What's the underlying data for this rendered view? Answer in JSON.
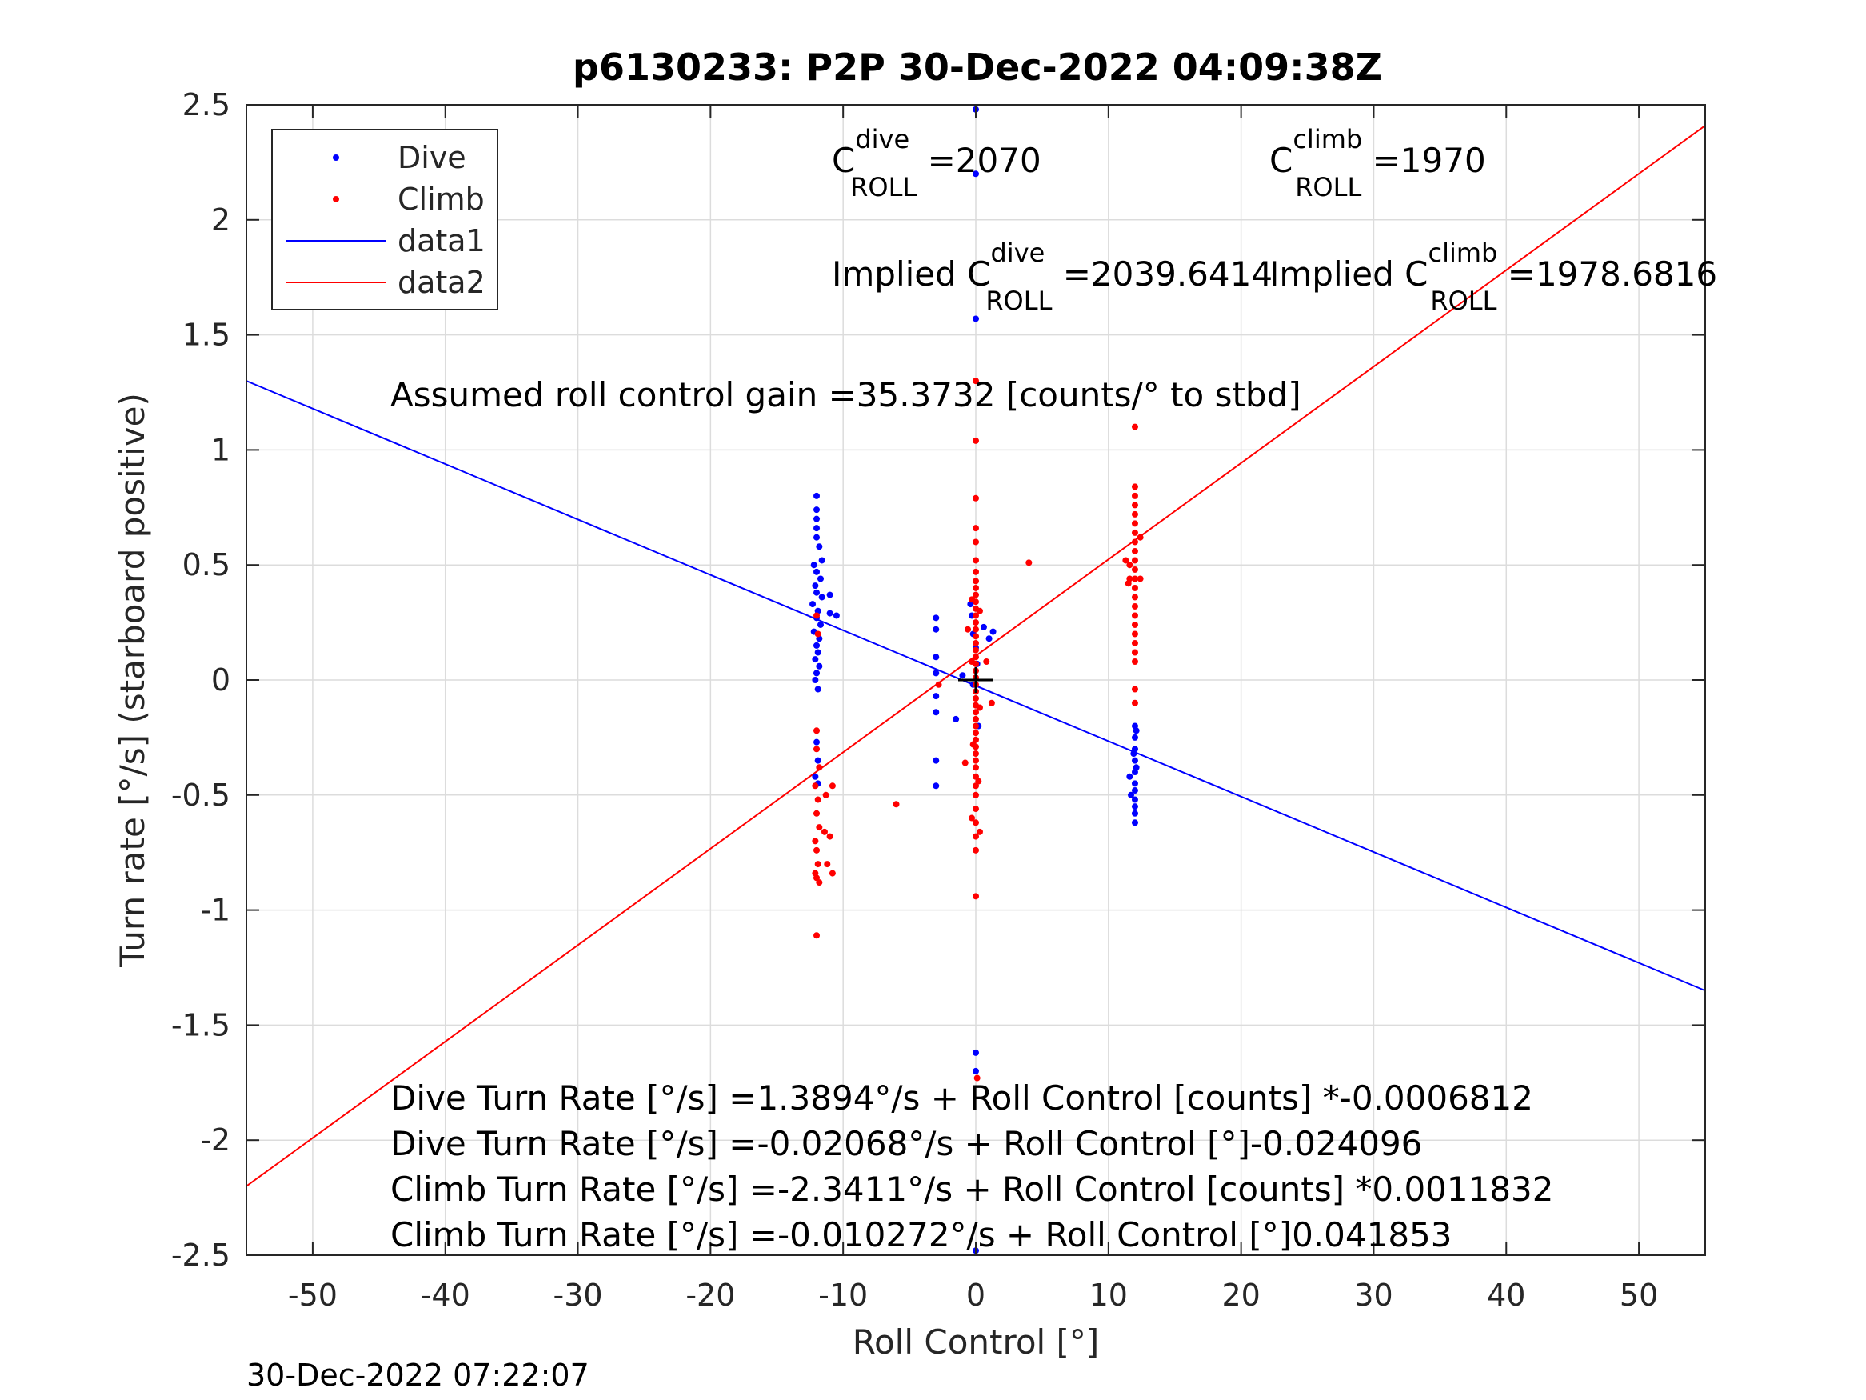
{
  "chart_data": {
    "type": "scatter",
    "title": "p6130233: P2P 30-Dec-2022 04:09:38Z",
    "xlabel": "Roll Control [°]",
    "ylabel": "Turn rate [°/s] (starboard positive)",
    "xlim": [
      -55,
      55
    ],
    "ylim": [
      -2.5,
      2.5
    ],
    "xticks": [
      -50,
      -40,
      -30,
      -20,
      -10,
      0,
      10,
      20,
      30,
      40,
      50
    ],
    "xtick_labels": [
      "-50",
      "-40",
      "-30",
      "-20",
      "-10",
      "0",
      "10",
      "20",
      "30",
      "40",
      "50"
    ],
    "yticks": [
      2.5,
      2,
      1.5,
      1,
      0.5,
      0,
      -0.5,
      -1,
      -1.5,
      -2,
      -2.5
    ],
    "ytick_labels": [
      "2.5",
      "2",
      "1.5",
      "1",
      "0.5",
      "0",
      "-0.5",
      "-1",
      "-1.5",
      "-2",
      "-2.5"
    ],
    "grid": true,
    "legend_position": "top-left",
    "legend": [
      {
        "label": "Dive",
        "type": "marker",
        "color": "#0000ff"
      },
      {
        "label": "Climb",
        "type": "marker",
        "color": "#ff0000"
      },
      {
        "label": "data1",
        "type": "line",
        "color": "#0000ff"
      },
      {
        "label": "data2",
        "type": "line",
        "color": "#ff0000"
      }
    ],
    "series": [
      {
        "name": "Dive",
        "color": "#0000ff",
        "points": [
          [
            -12,
            0.8
          ],
          [
            -12,
            0.74
          ],
          [
            -12,
            0.7
          ],
          [
            -12,
            0.66
          ],
          [
            -12,
            0.62
          ],
          [
            -11.8,
            0.58
          ],
          [
            -11.6,
            0.52
          ],
          [
            -12.2,
            0.5
          ],
          [
            -12,
            0.47
          ],
          [
            -11.7,
            0.44
          ],
          [
            -12.1,
            0.41
          ],
          [
            -12,
            0.38
          ],
          [
            -11.6,
            0.36
          ],
          [
            -12.3,
            0.33
          ],
          [
            -11.9,
            0.3
          ],
          [
            -12,
            0.27
          ],
          [
            -11.7,
            0.24
          ],
          [
            -12.2,
            0.21
          ],
          [
            -11.8,
            0.18
          ],
          [
            -12,
            0.15
          ],
          [
            -11.9,
            0.12
          ],
          [
            -12.1,
            0.09
          ],
          [
            -11.8,
            0.06
          ],
          [
            -12,
            0.03
          ],
          [
            -12.1,
            0.0
          ],
          [
            -11.9,
            -0.04
          ],
          [
            -11,
            0.37
          ],
          [
            -11,
            0.29
          ],
          [
            -10.5,
            0.28
          ],
          [
            -12,
            -0.27
          ],
          [
            -11.9,
            -0.35
          ],
          [
            -12.1,
            -0.42
          ],
          [
            -11.9,
            -0.45
          ],
          [
            -3,
            0.27
          ],
          [
            -3,
            0.22
          ],
          [
            -3,
            0.1
          ],
          [
            -3,
            0.03
          ],
          [
            -3,
            -0.07
          ],
          [
            -3,
            -0.14
          ],
          [
            -3,
            -0.35
          ],
          [
            -3,
            -0.46
          ],
          [
            -1.5,
            -0.17
          ],
          [
            -1,
            0.02
          ],
          [
            -0.4,
            0.33
          ],
          [
            -0.3,
            0.28
          ],
          [
            -0.2,
            0.2
          ],
          [
            0,
            0.14
          ],
          [
            0.1,
            0.07
          ],
          [
            -0.2,
            -0.02
          ],
          [
            0.2,
            -0.2
          ],
          [
            0,
            2.48
          ],
          [
            0,
            2.2
          ],
          [
            0,
            1.57
          ],
          [
            0,
            -1.62
          ],
          [
            0,
            -1.7
          ],
          [
            0,
            -2.48
          ],
          [
            1,
            0.18
          ],
          [
            1.3,
            0.21
          ],
          [
            0.6,
            0.23
          ],
          [
            11.6,
            -0.42
          ],
          [
            11.7,
            -0.5
          ],
          [
            12,
            -0.2
          ],
          [
            12,
            -0.25
          ],
          [
            12,
            -0.3
          ],
          [
            12,
            -0.35
          ],
          [
            12,
            -0.4
          ],
          [
            12,
            -0.45
          ],
          [
            12,
            -0.48
          ],
          [
            12,
            -0.52
          ],
          [
            12,
            -0.55
          ],
          [
            12,
            -0.58
          ],
          [
            12,
            -0.62
          ],
          [
            12.1,
            -0.22
          ],
          [
            11.9,
            -0.32
          ],
          [
            12.1,
            -0.38
          ]
        ]
      },
      {
        "name": "Climb",
        "color": "#ff0000",
        "points": [
          [
            -12,
            -0.22
          ],
          [
            -12,
            -0.3
          ],
          [
            -11.8,
            -0.38
          ],
          [
            -12.1,
            -0.46
          ],
          [
            -11.9,
            -0.52
          ],
          [
            -12,
            -0.58
          ],
          [
            -11.8,
            -0.64
          ],
          [
            -12.1,
            -0.7
          ],
          [
            -12,
            -0.74
          ],
          [
            -11.9,
            -0.8
          ],
          [
            -12,
            -0.86
          ],
          [
            -11.8,
            -0.88
          ],
          [
            -12.1,
            -0.84
          ],
          [
            -12,
            -1.11
          ],
          [
            -11.3,
            -0.5
          ],
          [
            -11.4,
            -0.66
          ],
          [
            -11,
            -0.68
          ],
          [
            -10.8,
            -0.46
          ],
          [
            -11.2,
            -0.8
          ],
          [
            -10.8,
            -0.84
          ],
          [
            -12,
            0.28
          ],
          [
            -11.9,
            0.2
          ],
          [
            -6,
            -0.54
          ],
          [
            -2.8,
            -0.02
          ],
          [
            -0.8,
            -0.36
          ],
          [
            0,
            1.3
          ],
          [
            0,
            1.04
          ],
          [
            0,
            0.79
          ],
          [
            0,
            0.66
          ],
          [
            0,
            0.6
          ],
          [
            0,
            0.52
          ],
          [
            0,
            0.47
          ],
          [
            0,
            0.43
          ],
          [
            0,
            0.4
          ],
          [
            0,
            0.37
          ],
          [
            0,
            0.34
          ],
          [
            0,
            0.31
          ],
          [
            0,
            0.28
          ],
          [
            0,
            0.25
          ],
          [
            0,
            0.22
          ],
          [
            0,
            0.19
          ],
          [
            0,
            0.16
          ],
          [
            0,
            0.13
          ],
          [
            0,
            0.1
          ],
          [
            0,
            0.07
          ],
          [
            0,
            0.04
          ],
          [
            0,
            0.01
          ],
          [
            0,
            -0.02
          ],
          [
            0,
            -0.05
          ],
          [
            0,
            -0.08
          ],
          [
            0,
            -0.11
          ],
          [
            0,
            -0.14
          ],
          [
            0,
            -0.17
          ],
          [
            0,
            -0.2
          ],
          [
            0,
            -0.23
          ],
          [
            0,
            -0.26
          ],
          [
            0,
            -0.29
          ],
          [
            0,
            -0.32
          ],
          [
            0,
            -0.35
          ],
          [
            0,
            -0.38
          ],
          [
            0,
            -0.42
          ],
          [
            0,
            -0.46
          ],
          [
            0,
            -0.5
          ],
          [
            0,
            -0.56
          ],
          [
            0,
            -0.62
          ],
          [
            0,
            -0.68
          ],
          [
            0,
            -0.74
          ],
          [
            0,
            -0.94
          ],
          [
            0.1,
            -1.73
          ],
          [
            -0.3,
            0.35
          ],
          [
            0.3,
            0.3
          ],
          [
            -0.3,
            0.08
          ],
          [
            0.3,
            -0.12
          ],
          [
            -0.2,
            -0.28
          ],
          [
            0.2,
            -0.44
          ],
          [
            -0.3,
            -0.6
          ],
          [
            0.3,
            -0.66
          ],
          [
            0.8,
            0.08
          ],
          [
            1.2,
            -0.1
          ],
          [
            -0.6,
            0.22
          ],
          [
            4,
            0.51
          ],
          [
            12,
            1.1
          ],
          [
            12,
            0.84
          ],
          [
            12,
            0.8
          ],
          [
            12,
            0.76
          ],
          [
            12,
            0.72
          ],
          [
            12,
            0.68
          ],
          [
            12,
            0.64
          ],
          [
            12,
            0.6
          ],
          [
            12,
            0.56
          ],
          [
            12,
            0.52
          ],
          [
            12,
            0.48
          ],
          [
            12,
            0.44
          ],
          [
            12,
            0.4
          ],
          [
            12,
            0.36
          ],
          [
            12,
            0.32
          ],
          [
            12,
            0.28
          ],
          [
            12,
            0.24
          ],
          [
            12,
            0.2
          ],
          [
            12,
            0.16
          ],
          [
            12,
            0.12
          ],
          [
            12,
            0.08
          ],
          [
            11.6,
            0.5
          ],
          [
            11.6,
            0.44
          ],
          [
            11.3,
            0.52
          ],
          [
            11.5,
            0.42
          ],
          [
            12.4,
            0.62
          ],
          [
            12.4,
            0.44
          ],
          [
            12,
            -0.04
          ],
          [
            12,
            -0.1
          ]
        ]
      }
    ],
    "fit_lines": [
      {
        "name": "data1",
        "color": "#0000ff",
        "x": [
          -55,
          55
        ],
        "y": [
          1.3,
          -1.35
        ]
      },
      {
        "name": "data2",
        "color": "#ff0000",
        "x": [
          -55,
          55
        ],
        "y": [
          -2.2,
          2.41
        ]
      }
    ],
    "center_marker": {
      "x": 0,
      "y": 0
    },
    "annotations": {
      "c_dive": {
        "base": "C",
        "sup": "dive",
        "sub": "ROLL",
        "value": " =2070"
      },
      "c_climb": {
        "base": "C",
        "sup": "climb",
        "sub": "ROLL",
        "value": " =1970"
      },
      "implied_dive": {
        "prefix": "Implied C",
        "sup": "dive",
        "sub": "ROLL",
        "value": " =2039.6414"
      },
      "implied_climb": {
        "prefix": "Implied C",
        "sup": "climb",
        "sub": "ROLL",
        "value": " =1978.6816"
      },
      "gain": "Assumed roll control gain =35.3732 [counts/° to stbd]",
      "equations": [
        "Dive Turn Rate [°/s] =1.3894°/s + Roll Control [counts] *-0.0006812",
        "Dive Turn Rate [°/s] =-0.02068°/s + Roll Control [°]-0.024096",
        "Climb Turn Rate [°/s] =-2.3411°/s + Roll Control [counts] *0.0011832",
        "Climb Turn Rate [°/s] =-0.010272°/s + Roll Control [°]0.041853"
      ]
    },
    "timestamp": "30-Dec-2022 07:22:07"
  }
}
